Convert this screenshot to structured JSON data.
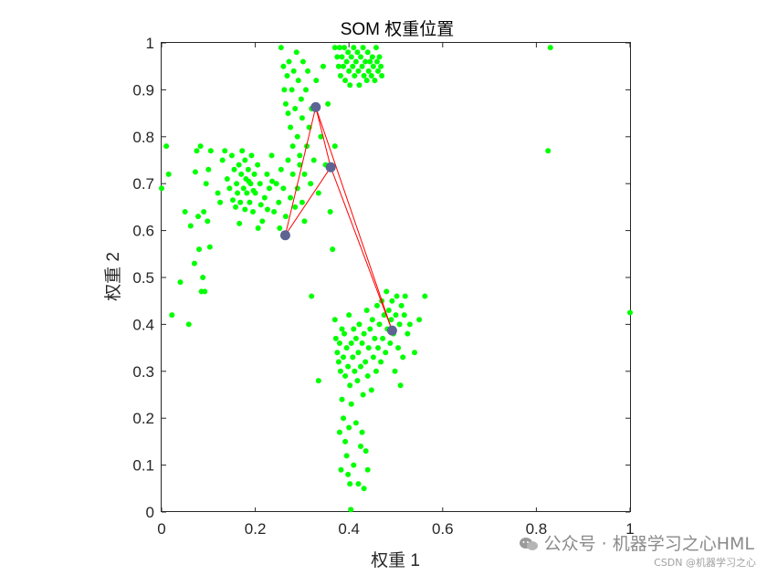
{
  "chart_data": {
    "type": "scatter",
    "title": "SOM 权重位置",
    "xlabel": "权重 1",
    "ylabel": "权重 2",
    "xlim": [
      0,
      1
    ],
    "ylim": [
      0,
      1
    ],
    "x_ticks": [
      "0",
      "0.2",
      "0.4",
      "0.6",
      "0.8",
      "1"
    ],
    "y_ticks": [
      "0",
      "0.1",
      "0.2",
      "0.3",
      "0.4",
      "0.5",
      "0.6",
      "0.7",
      "0.8",
      "0.9",
      "1"
    ],
    "grid": false,
    "colors": {
      "data": "#00ff00",
      "neurons": "#5d6493",
      "connections": "#ff0000",
      "axes": "#262626"
    },
    "neurons": {
      "points": [
        [
          0.329,
          0.863
        ],
        [
          0.361,
          0.735
        ],
        [
          0.264,
          0.59
        ],
        [
          0.492,
          0.387
        ]
      ],
      "connections": [
        [
          0,
          1
        ],
        [
          0,
          2
        ],
        [
          1,
          2
        ],
        [
          0,
          3
        ],
        [
          1,
          3
        ]
      ]
    },
    "data_points": [
      [
        0.0,
        0.69
      ],
      [
        0.01,
        0.78
      ],
      [
        0.015,
        0.72
      ],
      [
        0.022,
        0.42
      ],
      [
        0.04,
        0.49
      ],
      [
        0.05,
        0.64
      ],
      [
        0.058,
        0.4
      ],
      [
        0.062,
        0.61
      ],
      [
        0.07,
        0.53
      ],
      [
        0.072,
        0.725
      ],
      [
        0.075,
        0.77
      ],
      [
        0.078,
        0.63
      ],
      [
        0.08,
        0.56
      ],
      [
        0.083,
        0.78
      ],
      [
        0.085,
        0.47
      ],
      [
        0.088,
        0.5
      ],
      [
        0.09,
        0.64
      ],
      [
        0.092,
        0.47
      ],
      [
        0.095,
        0.7
      ],
      [
        0.098,
        0.62
      ],
      [
        0.1,
        0.73
      ],
      [
        0.103,
        0.565
      ],
      [
        0.105,
        0.77
      ],
      [
        0.12,
        0.68
      ],
      [
        0.125,
        0.66
      ],
      [
        0.13,
        0.75
      ],
      [
        0.135,
        0.77
      ],
      [
        0.14,
        0.71
      ],
      [
        0.145,
        0.69
      ],
      [
        0.15,
        0.76
      ],
      [
        0.155,
        0.73
      ],
      [
        0.158,
        0.65
      ],
      [
        0.16,
        0.7
      ],
      [
        0.162,
        0.68
      ],
      [
        0.165,
        0.74
      ],
      [
        0.168,
        0.66
      ],
      [
        0.17,
        0.72
      ],
      [
        0.172,
        0.77
      ],
      [
        0.175,
        0.69
      ],
      [
        0.178,
        0.75
      ],
      [
        0.18,
        0.71
      ],
      [
        0.182,
        0.68
      ],
      [
        0.185,
        0.73
      ],
      [
        0.188,
        0.66
      ],
      [
        0.19,
        0.7
      ],
      [
        0.192,
        0.76
      ],
      [
        0.195,
        0.64
      ],
      [
        0.198,
        0.72
      ],
      [
        0.2,
        0.68
      ],
      [
        0.205,
        0.74
      ],
      [
        0.21,
        0.7
      ],
      [
        0.215,
        0.62
      ],
      [
        0.22,
        0.67
      ],
      [
        0.225,
        0.72
      ],
      [
        0.23,
        0.69
      ],
      [
        0.235,
        0.76
      ],
      [
        0.24,
        0.64
      ],
      [
        0.245,
        0.7
      ],
      [
        0.25,
        0.66
      ],
      [
        0.255,
        0.73
      ],
      [
        0.26,
        0.69
      ],
      [
        0.265,
        0.63
      ],
      [
        0.27,
        0.75
      ],
      [
        0.275,
        0.67
      ],
      [
        0.28,
        0.72
      ],
      [
        0.285,
        0.65
      ],
      [
        0.29,
        0.69
      ],
      [
        0.295,
        0.74
      ],
      [
        0.3,
        0.66
      ],
      [
        0.305,
        0.62
      ],
      [
        0.152,
        0.665
      ],
      [
        0.166,
        0.615
      ],
      [
        0.178,
        0.645
      ],
      [
        0.186,
        0.705
      ],
      [
        0.196,
        0.685
      ],
      [
        0.206,
        0.605
      ],
      [
        0.212,
        0.655
      ],
      [
        0.226,
        0.645
      ],
      [
        0.236,
        0.705
      ],
      [
        0.252,
        0.605
      ],
      [
        0.255,
        0.99
      ],
      [
        0.26,
        0.95
      ],
      [
        0.262,
        0.9
      ],
      [
        0.265,
        0.87
      ],
      [
        0.268,
        0.93
      ],
      [
        0.27,
        0.85
      ],
      [
        0.272,
        0.96
      ],
      [
        0.275,
        0.82
      ],
      [
        0.278,
        0.9
      ],
      [
        0.28,
        0.78
      ],
      [
        0.282,
        0.94
      ],
      [
        0.285,
        0.86
      ],
      [
        0.288,
        0.98
      ],
      [
        0.29,
        0.8
      ],
      [
        0.292,
        0.92
      ],
      [
        0.295,
        0.76
      ],
      [
        0.298,
        0.88
      ],
      [
        0.3,
        0.84
      ],
      [
        0.302,
        0.96
      ],
      [
        0.305,
        0.72
      ],
      [
        0.308,
        0.9
      ],
      [
        0.31,
        0.78
      ],
      [
        0.312,
        0.94
      ],
      [
        0.315,
        0.82
      ],
      [
        0.318,
        0.7
      ],
      [
        0.32,
        0.86
      ],
      [
        0.325,
        0.75
      ],
      [
        0.33,
        0.92
      ],
      [
        0.335,
        0.68
      ],
      [
        0.34,
        0.8
      ],
      [
        0.345,
        0.95
      ],
      [
        0.35,
        0.74
      ],
      [
        0.355,
        0.87
      ],
      [
        0.36,
        0.64
      ],
      [
        0.365,
        0.56
      ],
      [
        0.37,
        0.78
      ],
      [
        0.37,
        0.99
      ],
      [
        0.375,
        0.97
      ],
      [
        0.378,
        0.95
      ],
      [
        0.38,
        0.99
      ],
      [
        0.382,
        0.93
      ],
      [
        0.385,
        0.97
      ],
      [
        0.388,
        0.95
      ],
      [
        0.39,
        0.99
      ],
      [
        0.392,
        0.92
      ],
      [
        0.395,
        0.96
      ],
      [
        0.398,
        0.98
      ],
      [
        0.4,
        0.94
      ],
      [
        0.402,
        0.91
      ],
      [
        0.405,
        0.97
      ],
      [
        0.408,
        0.95
      ],
      [
        0.41,
        0.99
      ],
      [
        0.412,
        0.93
      ],
      [
        0.415,
        0.96
      ],
      [
        0.418,
        0.98
      ],
      [
        0.42,
        0.94
      ],
      [
        0.422,
        0.91
      ],
      [
        0.425,
        0.97
      ],
      [
        0.428,
        0.95
      ],
      [
        0.43,
        0.99
      ],
      [
        0.432,
        0.93
      ],
      [
        0.435,
        0.96
      ],
      [
        0.438,
        0.92
      ],
      [
        0.44,
        0.98
      ],
      [
        0.442,
        0.94
      ],
      [
        0.445,
        0.96
      ],
      [
        0.448,
        0.93
      ],
      [
        0.45,
        0.97
      ],
      [
        0.452,
        0.95
      ],
      [
        0.455,
        0.92
      ],
      [
        0.458,
        0.99
      ],
      [
        0.46,
        0.96
      ],
      [
        0.462,
        0.94
      ],
      [
        0.465,
        0.97
      ],
      [
        0.468,
        0.95
      ],
      [
        0.47,
        0.93
      ],
      [
        0.32,
        0.46
      ],
      [
        0.335,
        0.28
      ],
      [
        0.37,
        0.41
      ],
      [
        0.372,
        0.37
      ],
      [
        0.375,
        0.34
      ],
      [
        0.378,
        0.32
      ],
      [
        0.38,
        0.36
      ],
      [
        0.382,
        0.3
      ],
      [
        0.385,
        0.39
      ],
      [
        0.388,
        0.33
      ],
      [
        0.39,
        0.38
      ],
      [
        0.392,
        0.29
      ],
      [
        0.395,
        0.35
      ],
      [
        0.398,
        0.31
      ],
      [
        0.4,
        0.42
      ],
      [
        0.402,
        0.27
      ],
      [
        0.405,
        0.36
      ],
      [
        0.408,
        0.33
      ],
      [
        0.41,
        0.39
      ],
      [
        0.412,
        0.3
      ],
      [
        0.415,
        0.37
      ],
      [
        0.418,
        0.28
      ],
      [
        0.42,
        0.34
      ],
      [
        0.422,
        0.4
      ],
      [
        0.425,
        0.31
      ],
      [
        0.428,
        0.36
      ],
      [
        0.43,
        0.25
      ],
      [
        0.432,
        0.38
      ],
      [
        0.435,
        0.32
      ],
      [
        0.438,
        0.43
      ],
      [
        0.44,
        0.29
      ],
      [
        0.442,
        0.35
      ],
      [
        0.445,
        0.39
      ],
      [
        0.448,
        0.26
      ],
      [
        0.45,
        0.41
      ],
      [
        0.452,
        0.33
      ],
      [
        0.455,
        0.37
      ],
      [
        0.458,
        0.3
      ],
      [
        0.46,
        0.44
      ],
      [
        0.462,
        0.35
      ],
      [
        0.465,
        0.4
      ],
      [
        0.468,
        0.32
      ],
      [
        0.47,
        0.45
      ],
      [
        0.472,
        0.37
      ],
      [
        0.475,
        0.42
      ],
      [
        0.478,
        0.34
      ],
      [
        0.48,
        0.47
      ],
      [
        0.482,
        0.39
      ],
      [
        0.485,
        0.43
      ],
      [
        0.488,
        0.36
      ],
      [
        0.49,
        0.41
      ],
      [
        0.492,
        0.45
      ],
      [
        0.495,
        0.38
      ],
      [
        0.498,
        0.3
      ],
      [
        0.5,
        0.42
      ],
      [
        0.502,
        0.46
      ],
      [
        0.505,
        0.35
      ],
      [
        0.508,
        0.4
      ],
      [
        0.51,
        0.27
      ],
      [
        0.512,
        0.44
      ],
      [
        0.515,
        0.33
      ],
      [
        0.518,
        0.42
      ],
      [
        0.52,
        0.46
      ],
      [
        0.525,
        0.38
      ],
      [
        0.53,
        0.4
      ],
      [
        0.54,
        0.34
      ],
      [
        0.55,
        0.41
      ],
      [
        0.562,
        0.46
      ],
      [
        0.385,
        0.24
      ],
      [
        0.388,
        0.2
      ],
      [
        0.392,
        0.15
      ],
      [
        0.395,
        0.12
      ],
      [
        0.398,
        0.08
      ],
      [
        0.4,
        0.18
      ],
      [
        0.402,
        0.06
      ],
      [
        0.405,
        0.23
      ],
      [
        0.41,
        0.1
      ],
      [
        0.415,
        0.19
      ],
      [
        0.42,
        0.06
      ],
      [
        0.425,
        0.14
      ],
      [
        0.428,
        0.17
      ],
      [
        0.432,
        0.05
      ],
      [
        0.436,
        0.13
      ],
      [
        0.44,
        0.09
      ],
      [
        0.38,
        0.17
      ],
      [
        0.383,
        0.09
      ],
      [
        0.404,
        0.005
      ],
      [
        0.825,
        0.77
      ],
      [
        0.83,
        0.99
      ],
      [
        1.0,
        0.425
      ]
    ]
  },
  "watermark": {
    "main": "公众号 · 机器学习之心HML",
    "sub": "CSDN @机器学习之心"
  }
}
